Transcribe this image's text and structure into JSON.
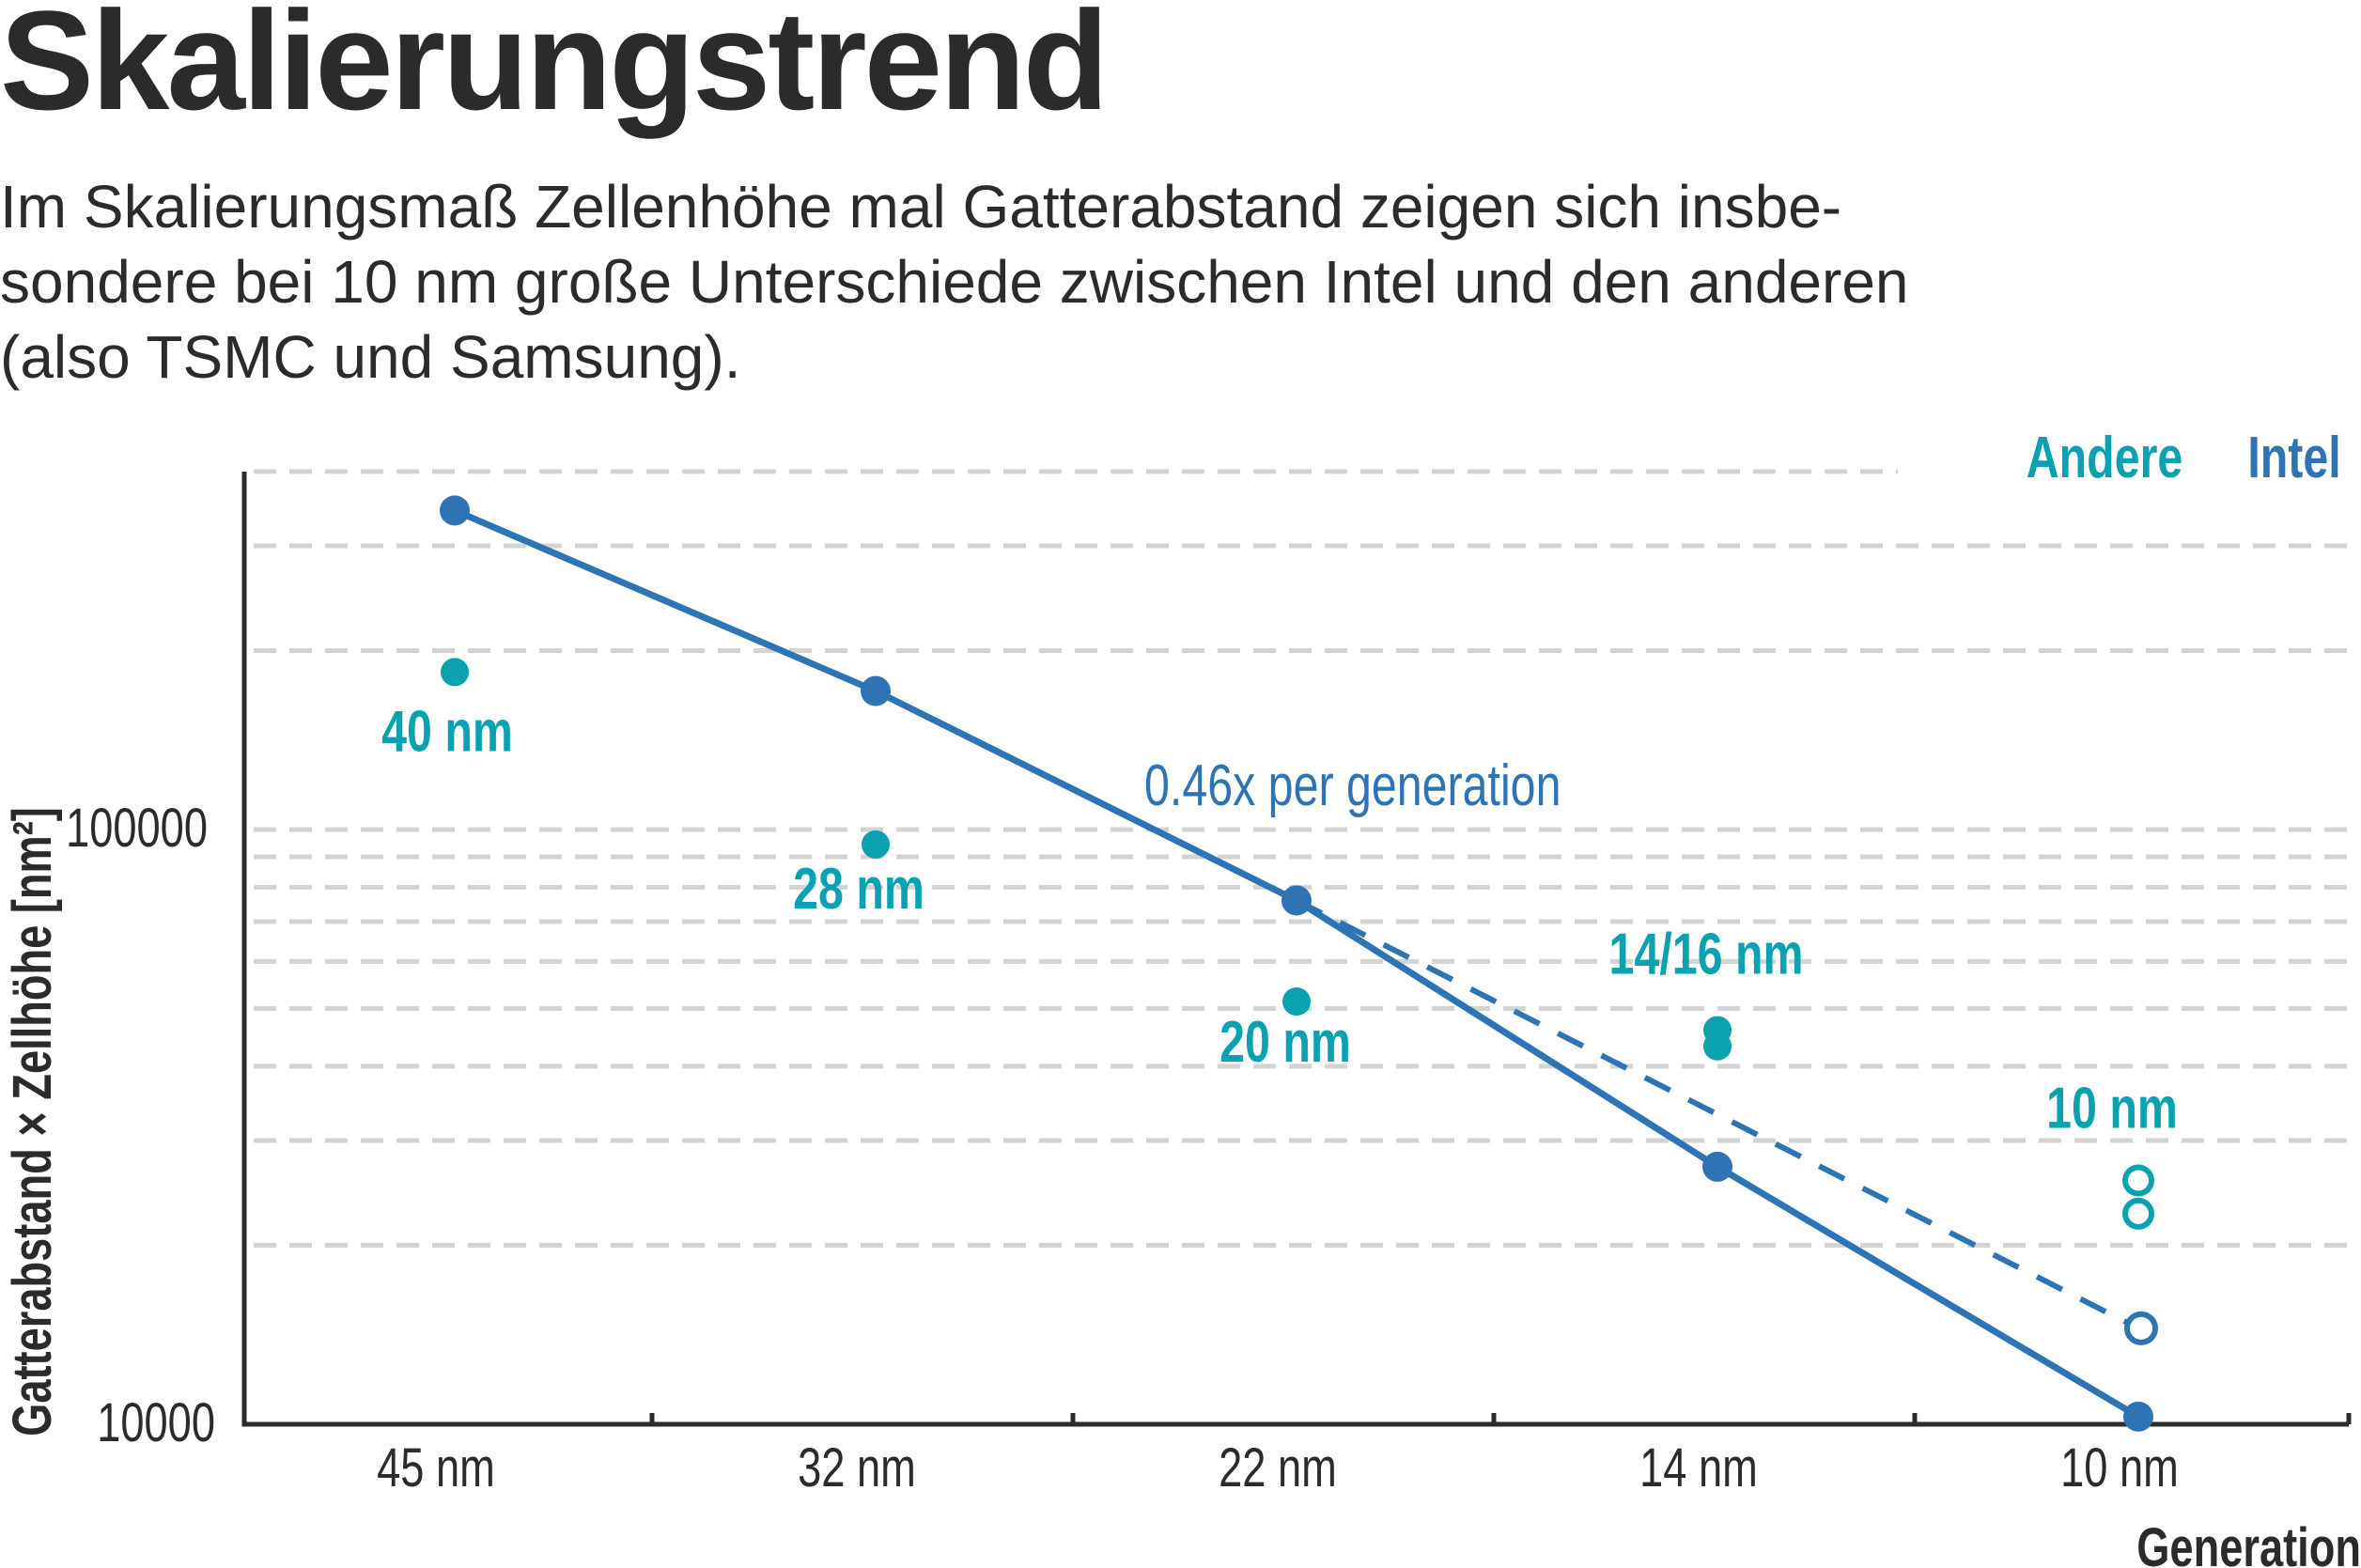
{
  "header": {
    "title": "Skalierungstrend",
    "subtitle_lines": [
      "Im Skalierungsmaß Zellenhöhe mal Gatterabstand zeigen sich insbe-",
      "sondere bei 10 nm große Unterschiede zwischen Intel und den anderen",
      "(also TSMC und Samsung)."
    ]
  },
  "colors": {
    "intel": "#2e74b5",
    "andere": "#0aa1b1",
    "grid": "#d3d3d3",
    "axis": "#2b2b2b"
  },
  "chart_data": {
    "type": "scatter",
    "title": "Skalierungstrend",
    "xlabel": "Generation",
    "ylabel": "Gatterabstand × Zellhöhe [nm²]",
    "yscale": "log",
    "ylim": [
      10000,
      400000
    ],
    "yticks": [
      {
        "value": 10000,
        "label": "10000"
      },
      {
        "value": 100000,
        "label": "100000"
      }
    ],
    "gridlines": [
      20000,
      30000,
      40000,
      50000,
      60000,
      70000,
      80000,
      90000,
      100000,
      200000,
      300000,
      400000
    ],
    "categories": [
      "45 nm",
      "32 nm",
      "22 nm",
      "14 nm",
      "10 nm"
    ],
    "legend": [
      {
        "name": "Andere",
        "color": "#0aa1b1"
      },
      {
        "name": "Intel",
        "color": "#2e74b5"
      }
    ],
    "legend_position": "top-right",
    "series": [
      {
        "name": "Intel",
        "style": "solid-line-markers",
        "points": [
          {
            "x": 0,
            "y": 344000
          },
          {
            "x": 1,
            "y": 171000
          },
          {
            "x": 2,
            "y": 76000
          },
          {
            "x": 3,
            "y": 27100
          },
          {
            "x": 4,
            "y": 10300
          }
        ]
      },
      {
        "name": "Intel trend 0.46x",
        "style": "dashed-line",
        "points": [
          {
            "x": 2,
            "y": 76000
          },
          {
            "x": 4,
            "y": 14500
          }
        ],
        "projected_marker_open": true
      },
      {
        "name": "Andere",
        "style": "markers",
        "points": [
          {
            "x": 0,
            "y": 184000,
            "label": "40 nm"
          },
          {
            "x": 1,
            "y": 94400,
            "label": "28 nm"
          },
          {
            "x": 2,
            "y": 51400,
            "label": "20 nm"
          },
          {
            "x": 3,
            "y": 46000,
            "label": "14/16 nm"
          },
          {
            "x": 3,
            "y": 43200
          },
          {
            "x": 4,
            "y": 25700,
            "label": "10 nm",
            "open": true
          },
          {
            "x": 4,
            "y": 22600,
            "open": true
          }
        ]
      }
    ],
    "annotations": [
      {
        "text": "0.46x per generation"
      }
    ]
  }
}
